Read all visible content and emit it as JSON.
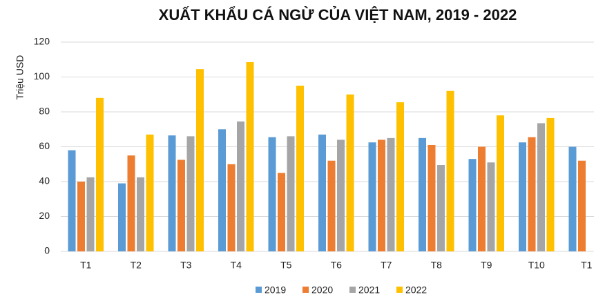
{
  "chart_data": {
    "type": "bar",
    "title": "XUẤT KHẨU CÁ NGỪ CỦA VIỆT NAM, 2019 - 2022",
    "y_label": "Triệu  USD",
    "categories": [
      "T1",
      "T2",
      "T3",
      "T4",
      "T5",
      "T6",
      "T7",
      "T8",
      "T9",
      "T10",
      "T1"
    ],
    "series": [
      {
        "name": "2019",
        "color": "#5b9bd5",
        "values": [
          58,
          39,
          66.5,
          70,
          65.5,
          67,
          62.5,
          65,
          53,
          62.5,
          60
        ]
      },
      {
        "name": "2020",
        "color": "#ed7d31",
        "values": [
          40,
          55,
          52.5,
          50,
          45,
          52,
          64,
          61,
          60,
          65.5,
          52
        ]
      },
      {
        "name": "2021",
        "color": "#a5a5a5",
        "values": [
          42.5,
          42.5,
          66,
          74.5,
          66,
          64,
          65,
          49.5,
          51,
          73.5,
          null
        ]
      },
      {
        "name": "2022",
        "color": "#ffc000",
        "values": [
          88,
          67,
          104.5,
          108.5,
          95,
          90,
          85.5,
          92,
          78,
          76.5,
          null
        ]
      }
    ],
    "ylim": [
      0,
      120
    ],
    "yticks": [
      0,
      20,
      40,
      60,
      80,
      100,
      120
    ],
    "grid": true,
    "legend": "bottom"
  }
}
